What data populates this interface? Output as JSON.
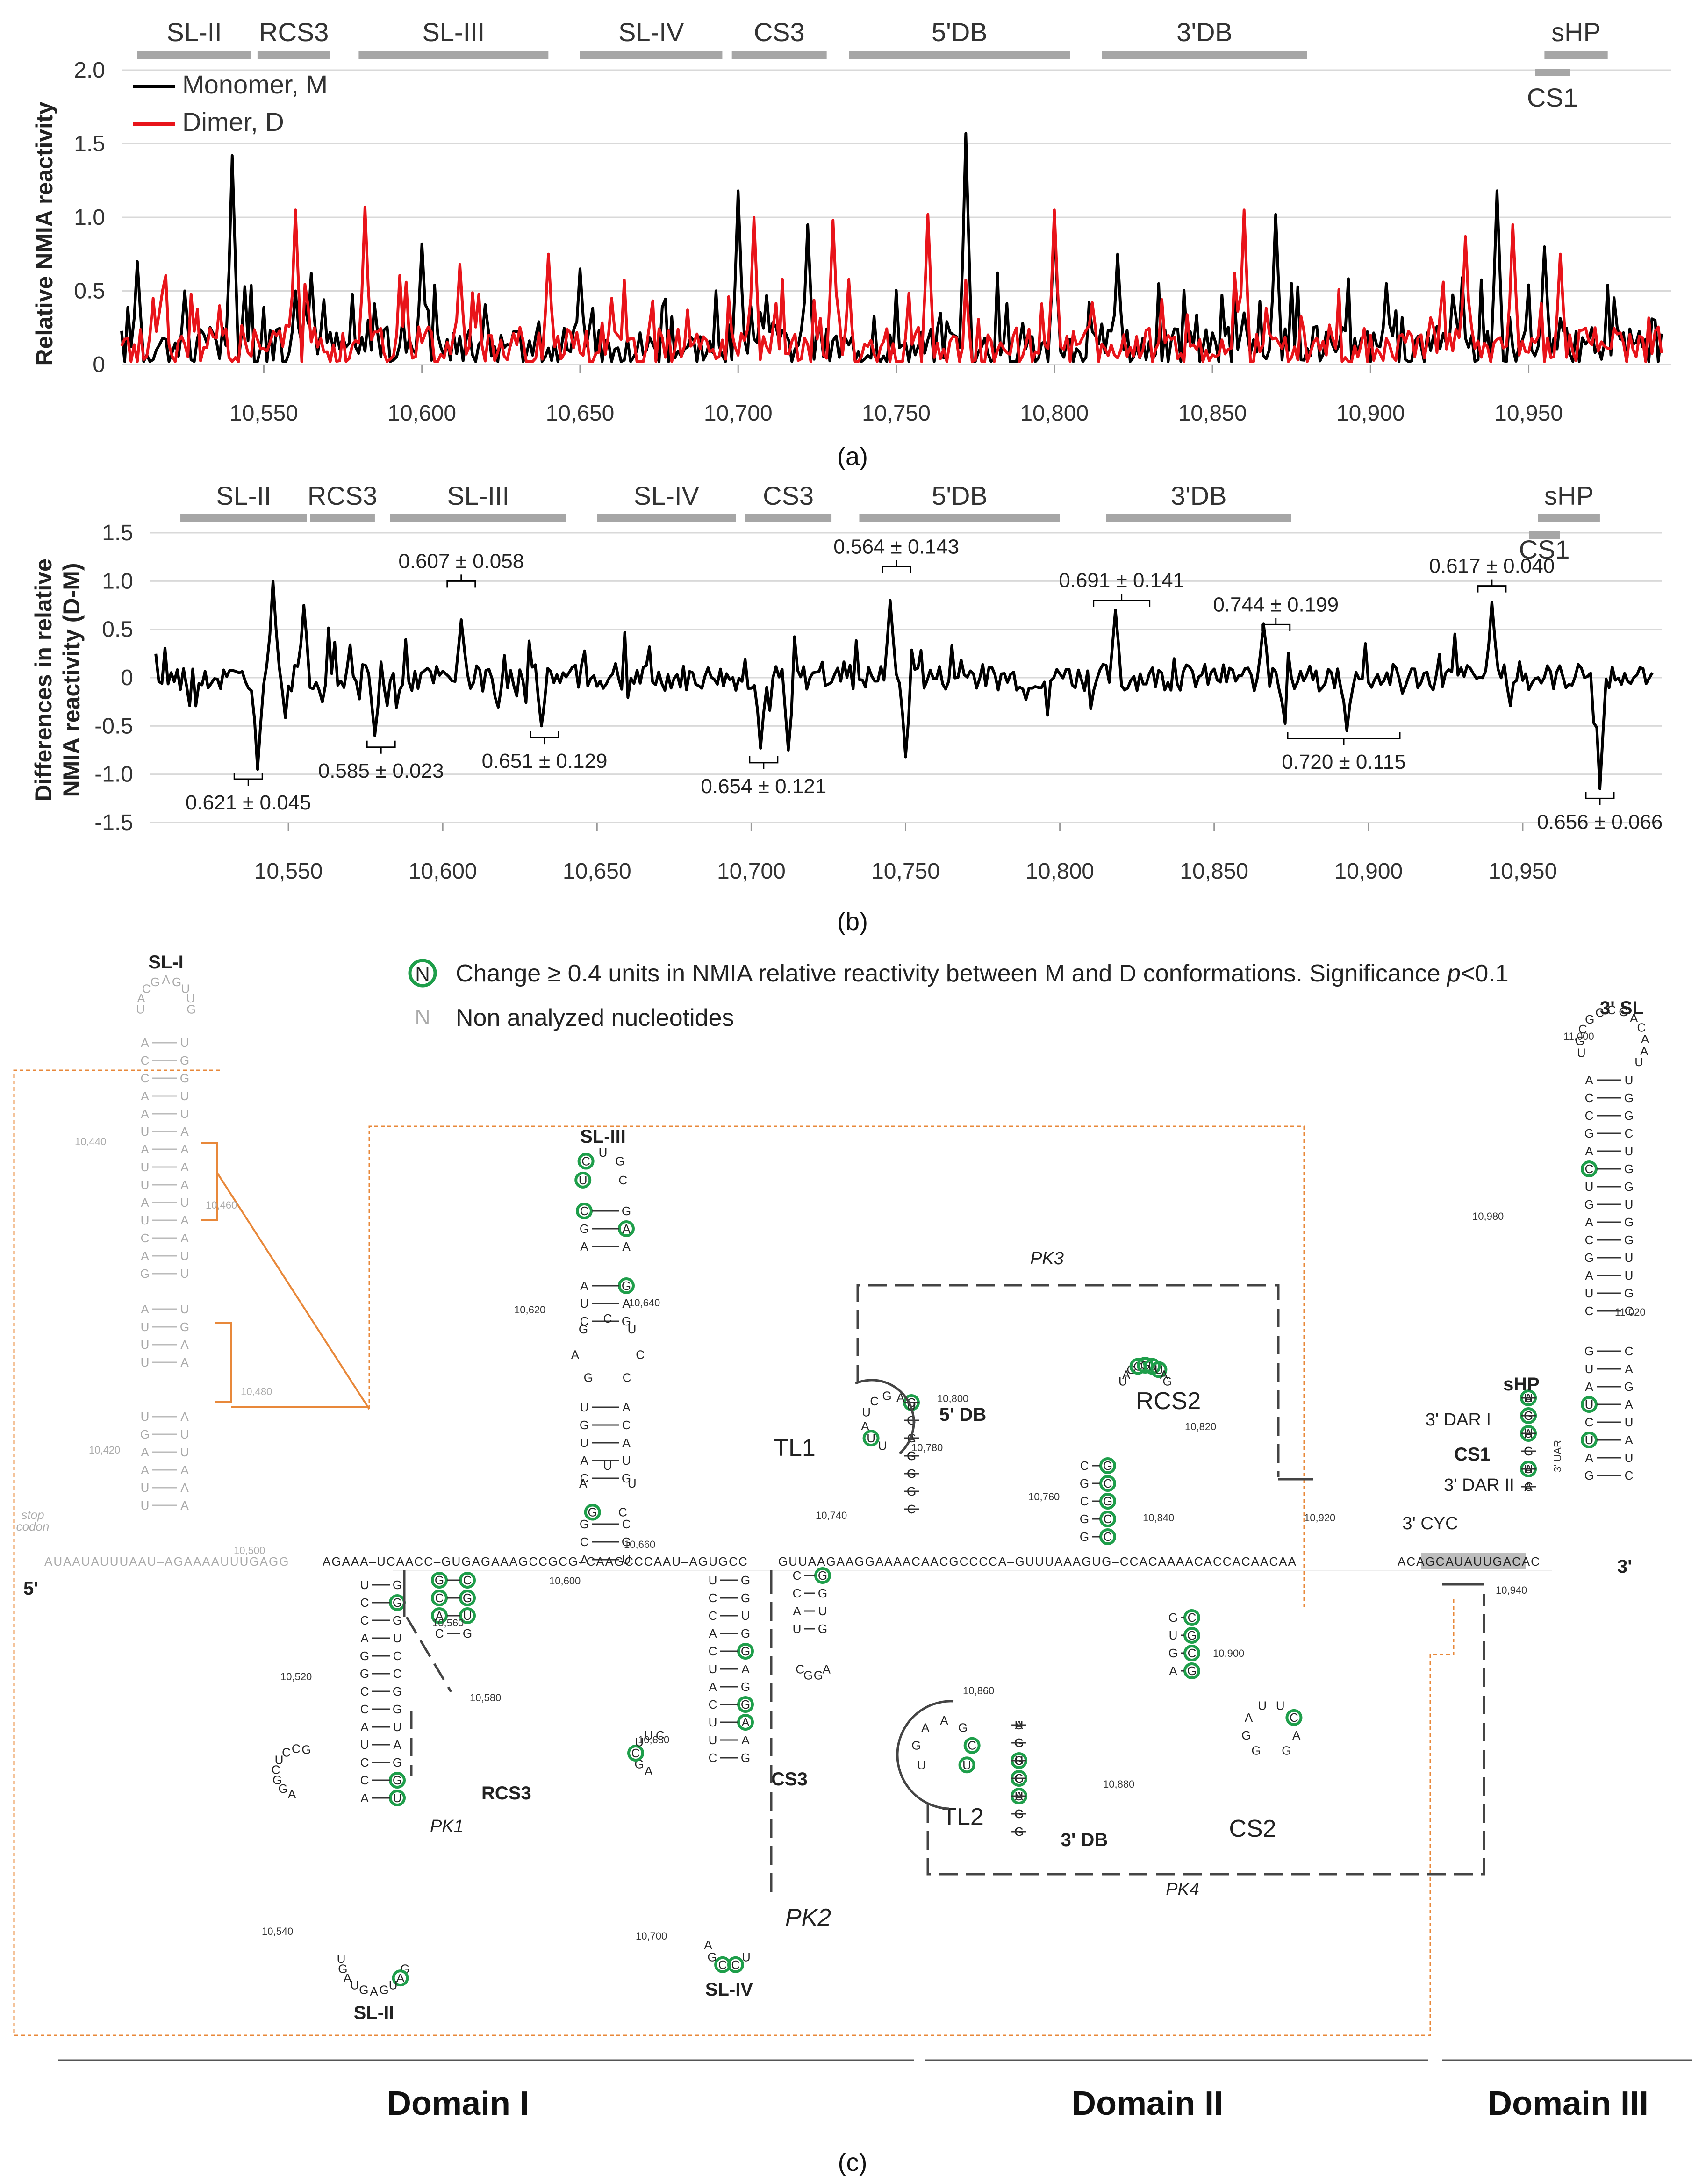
{
  "colors": {
    "monomer": "#000000",
    "dimer": "#e8141a",
    "region_bar": "#a6a6a6",
    "grid": "#d9d9d9",
    "highlight": "#1e9e4a",
    "nonanalyzed": "#aaaaaa",
    "orange": "#e8883a",
    "dash": "#444444"
  },
  "chart_data": [
    {
      "type": "line",
      "panel": "(a)",
      "ylabel": "Relative NMIA reactivity",
      "ylim": [
        0,
        2.0
      ],
      "yticks": [
        "2.0",
        "1.5",
        "1.0",
        "0.5",
        "0"
      ],
      "xlim": [
        10505,
        10995
      ],
      "xticks": [
        "10,550",
        "10,600",
        "10,650",
        "10,700",
        "10,750",
        "10,800",
        "10,850",
        "10,900",
        "10,950"
      ],
      "regions": [
        {
          "name": "SL-II",
          "start": 10510,
          "end": 10546
        },
        {
          "name": "RCS3",
          "start": 10548,
          "end": 10571
        },
        {
          "name": "SL-III",
          "start": 10580,
          "end": 10640
        },
        {
          "name": "SL-IV",
          "start": 10650,
          "end": 10695
        },
        {
          "name": "CS3",
          "start": 10698,
          "end": 10728
        },
        {
          "name": "5'DB",
          "start": 10735,
          "end": 10805
        },
        {
          "name": "3'DB",
          "start": 10815,
          "end": 10880
        },
        {
          "name": "sHP",
          "start": 10955,
          "end": 10975
        },
        {
          "name": "CS1",
          "start": 10952,
          "end": 10963
        }
      ],
      "series": [
        {
          "name": "Monomer, M",
          "peaks": [
            [
              10510,
              0.7
            ],
            [
              10525,
              0.5
            ],
            [
              10540,
              1.42
            ],
            [
              10560,
              0.5
            ],
            [
              10565,
              0.62
            ],
            [
              10600,
              0.82
            ],
            [
              10650,
              0.65
            ],
            [
              10700,
              1.18
            ],
            [
              10722,
              0.95
            ],
            [
              10772,
              1.57
            ],
            [
              10800,
              0.95
            ],
            [
              10820,
              0.75
            ],
            [
              10870,
              1.02
            ],
            [
              10905,
              0.55
            ],
            [
              10940,
              1.18
            ],
            [
              10955,
              0.8
            ]
          ]
        },
        {
          "name": "Dimer, D",
          "peaks": [
            [
              10515,
              0.45
            ],
            [
              10536,
              0.4
            ],
            [
              10560,
              1.05
            ],
            [
              10582,
              1.07
            ],
            [
              10612,
              0.68
            ],
            [
              10640,
              0.75
            ],
            [
              10660,
              0.45
            ],
            [
              10705,
              1.0
            ],
            [
              10730,
              0.98
            ],
            [
              10760,
              1.02
            ],
            [
              10800,
              1.05
            ],
            [
              10860,
              1.05
            ],
            [
              10930,
              0.87
            ],
            [
              10945,
              0.95
            ],
            [
              10960,
              0.75
            ]
          ]
        }
      ]
    },
    {
      "type": "line",
      "panel": "(b)",
      "ylabel": "Differences in relative NMIA reactivity (D-M)",
      "ylim": [
        -1.5,
        1.5
      ],
      "yticks": [
        "1.5",
        "1.0",
        "0.5",
        "0",
        "-0.5",
        "-1.0",
        "-1.5"
      ],
      "xlim": [
        10505,
        10995
      ],
      "xticks": [
        "10,550",
        "10,600",
        "10,650",
        "10,700",
        "10,750",
        "10,800",
        "10,850",
        "10,900",
        "10,950"
      ],
      "regions": [
        {
          "name": "SL-II",
          "start": 10515,
          "end": 10556
        },
        {
          "name": "RCS3",
          "start": 10557,
          "end": 10578
        },
        {
          "name": "SL-III",
          "start": 10583,
          "end": 10640
        },
        {
          "name": "SL-IV",
          "start": 10650,
          "end": 10695
        },
        {
          "name": "CS3",
          "start": 10698,
          "end": 10726
        },
        {
          "name": "5'DB",
          "start": 10735,
          "end": 10800
        },
        {
          "name": "3'DB",
          "start": 10815,
          "end": 10875
        },
        {
          "name": "sHP",
          "start": 10955,
          "end": 10975
        },
        {
          "name": "CS1",
          "start": 10952,
          "end": 10962
        }
      ],
      "series": [
        {
          "name": "D-M",
          "peaks": [
            [
              10540,
              -0.95
            ],
            [
              10545,
              1.0
            ],
            [
              10555,
              0.75
            ],
            [
              10578,
              -0.6
            ],
            [
              10606,
              0.6
            ],
            [
              10632,
              -0.5
            ],
            [
              10703,
              -0.73
            ],
            [
              10712,
              -0.75
            ],
            [
              10745,
              0.8
            ],
            [
              10750,
              -0.82
            ],
            [
              10818,
              0.7
            ],
            [
              10866,
              0.56
            ],
            [
              10893,
              -0.55
            ],
            [
              10940,
              0.78
            ],
            [
              10975,
              -1.15
            ]
          ]
        }
      ],
      "annotations": [
        {
          "text": "0.621 ± 0.045",
          "x": 10537
        },
        {
          "text": "0.585 ± 0.023",
          "x": 10580
        },
        {
          "text": "0.607 ± 0.058",
          "x": 10606
        },
        {
          "text": "0.651 ± 0.129",
          "x": 10633
        },
        {
          "text": "0.654 ± 0.121",
          "x": 10704
        },
        {
          "text": "0.564 ± 0.143",
          "x": 10747
        },
        {
          "text": "0.691 ± 0.141",
          "x": 10820
        },
        {
          "text": "0.744 ± 0.199",
          "x": 10870
        },
        {
          "text": "0.720 ± 0.115",
          "x": 10892
        },
        {
          "text": "0.617 ± 0.040",
          "x": 10940
        },
        {
          "text": "0.656 ± 0.066",
          "x": 10975
        }
      ]
    }
  ],
  "panel_labels": {
    "a": "(a)",
    "b": "(b)",
    "c": "(c)"
  },
  "legend_a": {
    "monomer": "Monomer, M",
    "dimer": "Dimer, D"
  },
  "legend_c": {
    "symbol_letter": "N",
    "change_text": "Change ≥ 0.4 units in NMIA relative reactivity between M and D conformations. Significance ",
    "p_text": "p",
    "p_suffix": "<0.1",
    "nonanalyzed_letter": "N",
    "nonanalyzed_text": "Non analyzed nucleotides"
  },
  "structure": {
    "labels": {
      "sl1": "SL-I",
      "sl2": "SL-II",
      "sl3": "SL-III",
      "sl4": "SL-IV",
      "rcs3": "RCS3",
      "cs3": "CS3",
      "db5": "5' DB",
      "db3": "3' DB",
      "rcs2": "RCS2",
      "cs2": "CS2",
      "tl1": "TL1",
      "tl2": "TL2",
      "pk1": "PK1",
      "pk2": "PK2",
      "pk3": "PK3",
      "pk4": "PK4",
      "shp": "sHP",
      "cs1": "CS1",
      "sl3prime": "3' SL",
      "dar1": "3' DAR I",
      "dar2": "3' DAR II",
      "cyc": "3' CYC",
      "uar": "3' UAR",
      "five_prime": "5'",
      "three_prime": "3'",
      "stop": "stop",
      "codon": "codon"
    },
    "numbers": [
      "10,440",
      "10,460",
      "10,480",
      "10,420",
      "10,500",
      "10,520",
      "10,540",
      "10,560",
      "10,580",
      "10,600",
      "10,620",
      "10,640",
      "10,660",
      "10,680",
      "10,700",
      "10,740",
      "10,760",
      "10,780",
      "10,800",
      "10,820",
      "10,840",
      "10,860",
      "10,880",
      "10,900",
      "10,920",
      "10,940",
      "10,980",
      "11,000",
      "11,020"
    ],
    "backbone_gray": "AUAAUAUUUAAU–AGAAAAUUUGAGG",
    "backbone_d1": "AGAAA–UCAACC–GUGAGAAAGCCGCG–CAAGCCCAAU–AGUGCC",
    "backbone_d2": "GUUAAGAAGGAAAACAACGCCCCA–GUUUAAAGUG–CCACAAAACACCACAACAA",
    "backbone_d3": "ACAGCAUAUUGACAC"
  },
  "domains": {
    "d1": "Domain I",
    "d2": "Domain II",
    "d3": "Domain III"
  }
}
